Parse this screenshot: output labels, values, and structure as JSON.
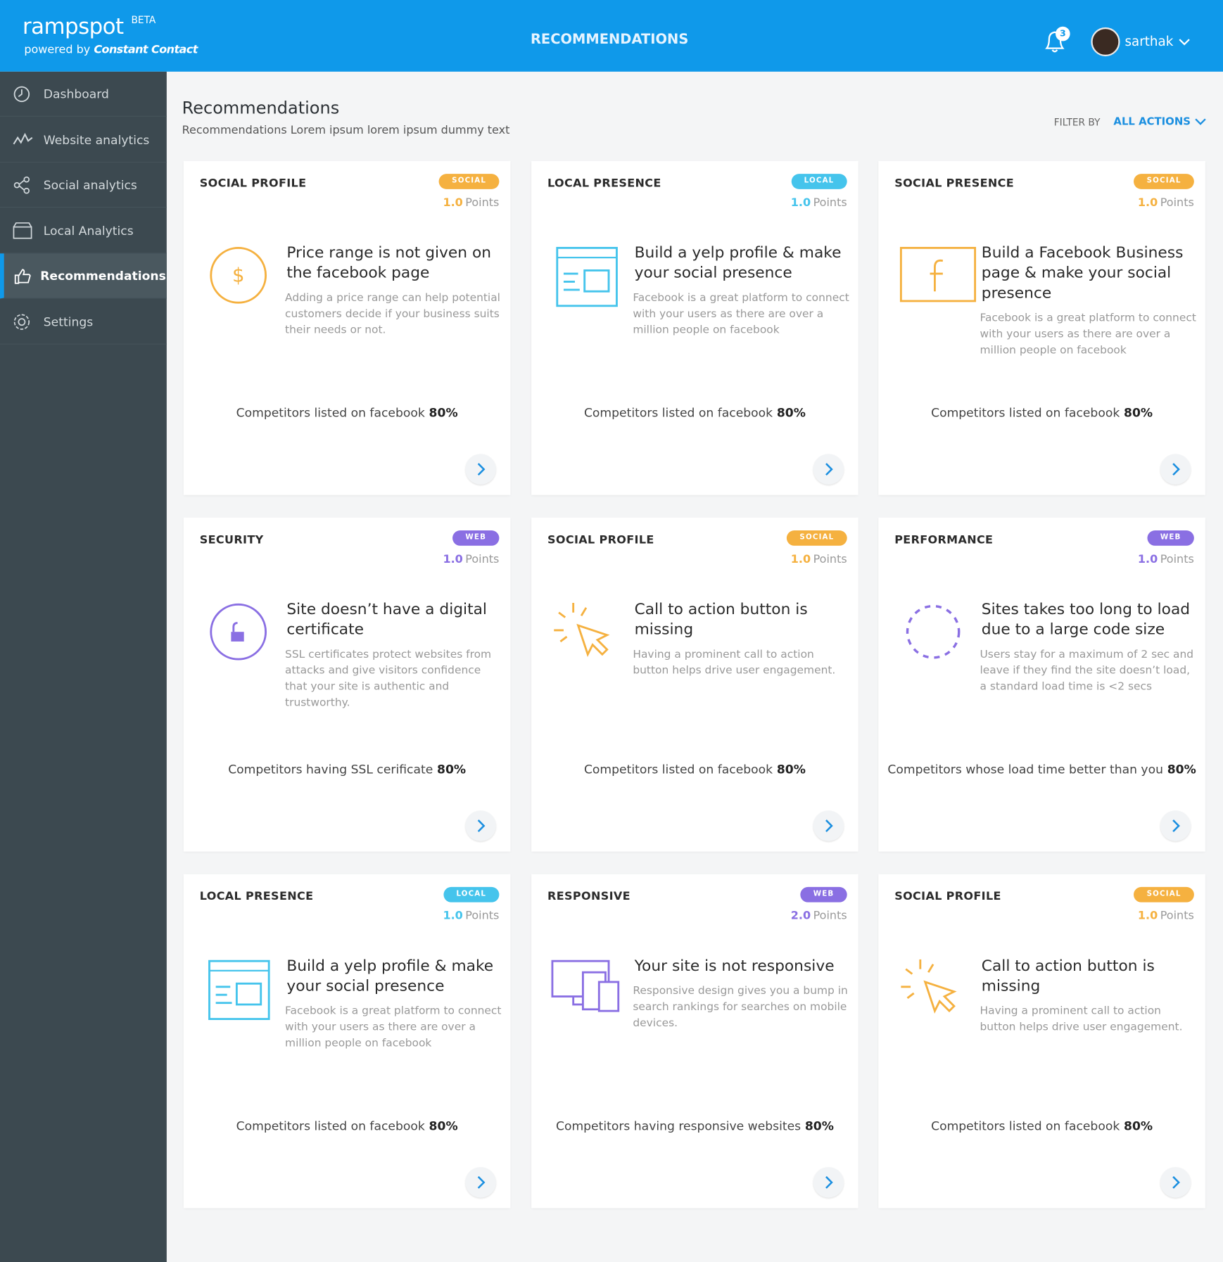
{
  "header": {
    "logo": "rampspot",
    "badge": "BETA",
    "powered_by": "powered by",
    "brand": "Constant Contact",
    "title": "RECOMMENDATIONS",
    "notifications": "3",
    "user": "sarthak"
  },
  "sidebar": {
    "items": [
      {
        "label": "Dashboard"
      },
      {
        "label": "Website analytics"
      },
      {
        "label": "Social analytics"
      },
      {
        "label": "Local Analytics"
      },
      {
        "label": "Recommendations",
        "active": true
      },
      {
        "label": "Settings"
      }
    ]
  },
  "page": {
    "title": "Recommendations",
    "subtitle": "Recommendations Lorem ipsum lorem ipsum dummy text",
    "filter_label": "FILTER BY",
    "filter_value": "ALL ACTIONS"
  },
  "cards": [
    {
      "category": "SOCIAL PROFILE",
      "tag": "SOCIAL",
      "tag_color": "#f5b140",
      "points": "1.0",
      "points_label": "Points",
      "title": "Price range is not given on the facebook page",
      "description": "Adding a price range can help potential customers decide if your business suits their needs or not.",
      "stat_label": "Competitors listed on facebook",
      "stat_value": "80%"
    },
    {
      "category": "LOCAL PRESENCE",
      "tag": "LOCAL",
      "tag_color": "#45c4ec",
      "points": "1.0",
      "points_label": "Points",
      "title": "Build a yelp profile & make your social presence",
      "description": "Facebook is a great platform to connect with your users as there are over a million people on facebook",
      "stat_label": "Competitors listed on facebook",
      "stat_value": "80%"
    },
    {
      "category": "SOCIAL PRESENCE",
      "tag": "SOCIAL",
      "tag_color": "#f5b140",
      "points": "1.0",
      "points_label": "Points",
      "title": "Build a Facebook Business page & make your social presence",
      "description": "Facebook is a great platform to connect with your users as there are over a million people on facebook",
      "stat_label": "Competitors listed on facebook",
      "stat_value": "80%"
    },
    {
      "category": "SECURITY",
      "tag": "WEB",
      "tag_color": "#8a6fe3",
      "points": "1.0",
      "points_label": "Points",
      "title": "Site doesn’t have a digital certificate",
      "description": "SSL certificates protect websites from attacks and give visitors confidence that your site is authentic and trustworthy.",
      "stat_label": "Competitors having SSL cerificate",
      "stat_value": "80%"
    },
    {
      "category": "SOCIAL PROFILE",
      "tag": "SOCIAL",
      "tag_color": "#f5b140",
      "points": "1.0",
      "points_label": "Points",
      "title": "Call to action button is missing",
      "description": "Having a prominent call to action button helps drive user engagement.",
      "stat_label": "Competitors listed on facebook",
      "stat_value": "80%"
    },
    {
      "category": "PERFORMANCE",
      "tag": "WEB",
      "tag_color": "#8a6fe3",
      "points": "1.0",
      "points_label": "Points",
      "title": "Sites takes too long to load due to a large code size",
      "description": "Users stay for a maximum of 2 sec and leave if they find the site doesn’t load, a standard load time  is <2 secs",
      "stat_label": "Competitors whose load time better than you",
      "stat_value": "80%"
    },
    {
      "category": "LOCAL PRESENCE",
      "tag": "LOCAL",
      "tag_color": "#45c4ec",
      "points": "1.0",
      "points_label": "Points",
      "title": "Build a yelp profile & make your social presence",
      "description": "Facebook is a great platform to connect with your users as there are over a million people on facebook",
      "stat_label": "Competitors listed on facebook",
      "stat_value": "80%"
    },
    {
      "category": "RESPONSIVE",
      "tag": "WEB",
      "tag_color": "#8a6fe3",
      "points": "2.0",
      "points_label": "Points",
      "title": "Your site is not responsive",
      "description": "Responsive design gives you a bump in search rankings for searches on mobile devices.",
      "stat_label": "Competitors having responsive websites",
      "stat_value": "80%"
    },
    {
      "category": "SOCIAL PROFILE",
      "tag": "SOCIAL",
      "tag_color": "#f5b140",
      "points": "1.0",
      "points_label": "Points",
      "title": "Call to action button is missing",
      "description": "Having a prominent call to action button helps drive user engagement.",
      "stat_label": "Competitors listed on facebook",
      "stat_value": "80%"
    }
  ]
}
